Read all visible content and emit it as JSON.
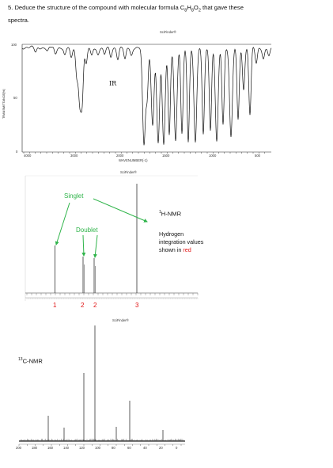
{
  "question": {
    "text_pre": "5.  Deduce the structure of the compound with molecular formula C",
    "sub1": "8",
    "mid1": "H",
    "sub2": "8",
    "mid2": "O",
    "sub3": "2",
    "text_post": " that gave these",
    "line2": "spectra."
  },
  "ir": {
    "scifinder": "SciFinder®",
    "label": "IR",
    "y_axis_label": "TRANSMITTANCE[%]",
    "y_ticks": [
      "100",
      "50",
      "0"
    ],
    "x_ticks": [
      "4000",
      "3000",
      "2000",
      "1500",
      "1000",
      "500"
    ],
    "x_axis_label": "WAVENUMBER(-1)"
  },
  "hnmr": {
    "scifinder": "SciFinder®",
    "title_sup": "1",
    "title": "H-NMR",
    "singlet_label": "Singlet",
    "doublet_label": "Doublet",
    "note_line1": "Hydrogen",
    "note_line2": "integration values",
    "note_line3_pre": "shown in ",
    "note_line3_red": "red",
    "integrations": [
      "1",
      "2",
      "2",
      "3"
    ],
    "colors": {
      "integration": "#e01010",
      "arrows": "#2fb44a"
    }
  },
  "cnmr": {
    "scifinder": "SciFinder®",
    "title_sup": "13",
    "title": "C-NMR",
    "x_ticks": [
      "200",
      "180",
      "160",
      "140",
      "120",
      "100",
      "80",
      "60",
      "40",
      "20",
      "0"
    ]
  }
}
